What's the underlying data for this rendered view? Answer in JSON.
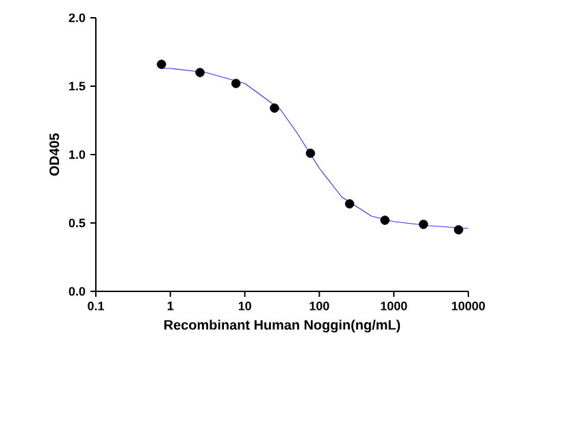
{
  "chart_data": {
    "type": "scatter",
    "xlabel": "Recombinant Human Noggin(ng/mL)",
    "ylabel": "OD405",
    "log": "x",
    "xlim": [
      0.1,
      10000
    ],
    "ylim": [
      0,
      2
    ],
    "xticks": [
      0.1,
      1,
      10,
      100,
      1000,
      10000
    ],
    "yticks": [
      {
        "value": 0,
        "label": "0.0"
      },
      {
        "value": 0.5,
        "label": "0.5"
      },
      {
        "value": 1,
        "label": "1.0"
      },
      {
        "value": 1.5,
        "label": "1.5"
      },
      {
        "value": 2,
        "label": "2.0"
      }
    ],
    "grid": false,
    "marker": "circle",
    "series": [
      {
        "type": "line",
        "marker": "none",
        "color": "#3333ff",
        "x": [
          0.76,
          1,
          3,
          10,
          30,
          50,
          100,
          200,
          500,
          1000,
          3000,
          10000
        ],
        "values": [
          1.63,
          1.63,
          1.6,
          1.52,
          1.33,
          1.16,
          0.9,
          0.69,
          0.55,
          0.51,
          0.48,
          0.46
        ]
      },
      {
        "color": "#000000",
        "x": [
          0.76,
          2.5,
          7.6,
          25,
          76,
          255,
          760,
          2500,
          7400
        ],
        "values": [
          1.66,
          1.6,
          1.52,
          1.34,
          1.01,
          0.64,
          0.52,
          0.49,
          0.45
        ]
      }
    ]
  }
}
